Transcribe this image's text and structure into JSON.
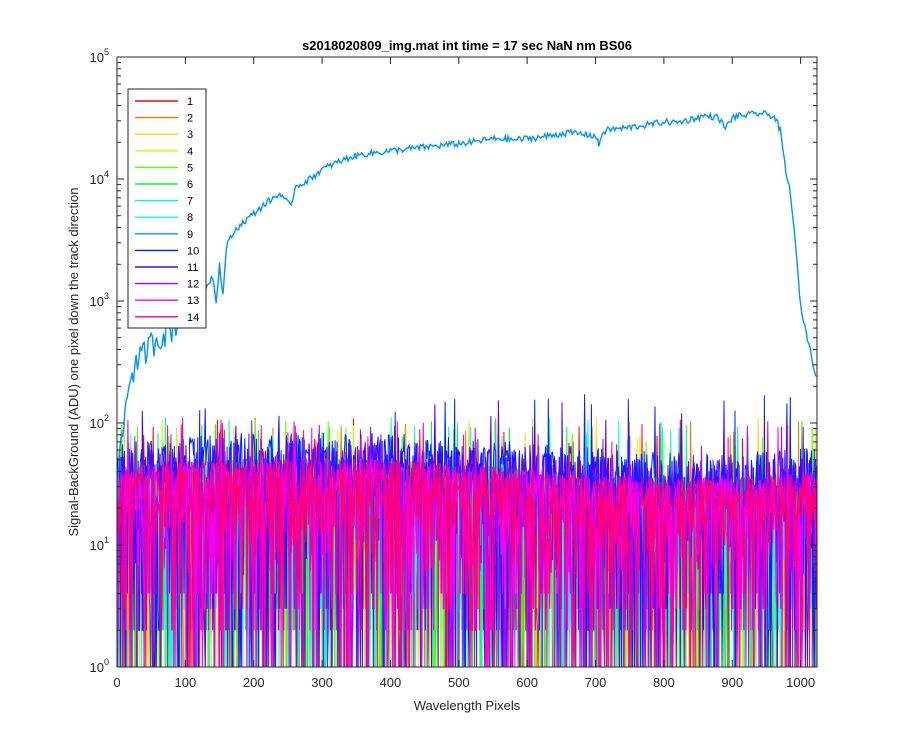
{
  "chart_data": {
    "type": "line",
    "title": "s2018020809_img.mat int time = 17 sec  NaN nm BS06",
    "xlabel": "Wavelength Pixels",
    "ylabel": "Signal-BackGround (ADU) one pixel down the track direction",
    "xlim": [
      0,
      1024
    ],
    "ylim": [
      1,
      100000
    ],
    "yscale": "log",
    "grid": false,
    "legend_position": "top-left",
    "x_ticks": [
      "0",
      "100",
      "200",
      "300",
      "400",
      "500",
      "600",
      "700",
      "800",
      "900",
      "1000"
    ],
    "x_tick_values": [
      0,
      100,
      200,
      300,
      400,
      500,
      600,
      700,
      800,
      900,
      1000
    ],
    "y_ticks": [
      {
        "base": "10",
        "exp": "0",
        "value": 1
      },
      {
        "base": "10",
        "exp": "1",
        "value": 10
      },
      {
        "base": "10",
        "exp": "2",
        "value": 100
      },
      {
        "base": "10",
        "exp": "3",
        "value": 1000
      },
      {
        "base": "10",
        "exp": "4",
        "value": 10000
      },
      {
        "base": "10",
        "exp": "5",
        "value": 100000
      }
    ],
    "series": [
      {
        "name": "1",
        "color": "#ff0000",
        "typical_range": [
          2,
          80
        ]
      },
      {
        "name": "2",
        "color": "#ff7300",
        "typical_range": [
          2,
          80
        ]
      },
      {
        "name": "3",
        "color": "#ffd700",
        "typical_range": [
          2,
          80
        ]
      },
      {
        "name": "4",
        "color": "#c8ff00",
        "typical_range": [
          2,
          80
        ]
      },
      {
        "name": "5",
        "color": "#5aff00",
        "typical_range": [
          2,
          80
        ]
      },
      {
        "name": "6",
        "color": "#00ff2e",
        "typical_range": [
          2,
          80
        ]
      },
      {
        "name": "7",
        "color": "#00ffa0",
        "typical_range": [
          2,
          80
        ]
      },
      {
        "name": "8",
        "color": "#00ffff",
        "typical_range": [
          2,
          80
        ]
      },
      {
        "name": "9",
        "color": "#0094ff",
        "x": [
          1,
          5,
          10,
          15,
          20,
          30,
          40,
          50,
          60,
          70,
          80,
          90,
          100,
          110,
          120,
          130,
          140,
          145,
          150,
          155,
          160,
          170,
          180,
          200,
          220,
          240,
          255,
          260,
          280,
          300,
          320,
          340,
          360,
          380,
          400,
          420,
          440,
          460,
          480,
          500,
          520,
          540,
          560,
          580,
          600,
          620,
          640,
          660,
          680,
          700,
          705,
          710,
          720,
          740,
          760,
          780,
          800,
          820,
          840,
          860,
          880,
          890,
          900,
          910,
          920,
          930,
          940,
          950,
          960,
          965,
          970,
          975,
          980,
          985,
          990,
          995,
          1000,
          1010,
          1020,
          1024
        ],
        "y": [
          30,
          60,
          100,
          170,
          250,
          320,
          380,
          450,
          500,
          550,
          600,
          700,
          800,
          900,
          1050,
          1300,
          1600,
          1000,
          2000,
          1100,
          2800,
          3600,
          4200,
          5200,
          6500,
          7600,
          5800,
          8600,
          9800,
          12000,
          13500,
          15000,
          16000,
          16500,
          17000,
          17500,
          18000,
          18500,
          19000,
          19500,
          20000,
          21000,
          21500,
          21000,
          21500,
          22000,
          23000,
          24000,
          23500,
          22500,
          19000,
          24000,
          25500,
          26000,
          27000,
          28000,
          29500,
          29000,
          31000,
          33000,
          32000,
          26000,
          32000,
          33000,
          33500,
          34000,
          34500,
          34000,
          33000,
          30000,
          25000,
          16000,
          10000,
          8000,
          4000,
          2000,
          900,
          500,
          280,
          240
        ]
      },
      {
        "name": "10",
        "color": "#0022ff",
        "typical_range": [
          2,
          130
        ]
      },
      {
        "name": "11",
        "color": "#4c00ff",
        "typical_range": [
          2,
          110
        ]
      },
      {
        "name": "12",
        "color": "#b400ff",
        "typical_range": [
          2,
          80
        ]
      },
      {
        "name": "13",
        "color": "#ff00e8",
        "typical_range": [
          2,
          80
        ]
      },
      {
        "name": "14",
        "color": "#ff0078",
        "typical_range": [
          2,
          80
        ]
      }
    ]
  }
}
